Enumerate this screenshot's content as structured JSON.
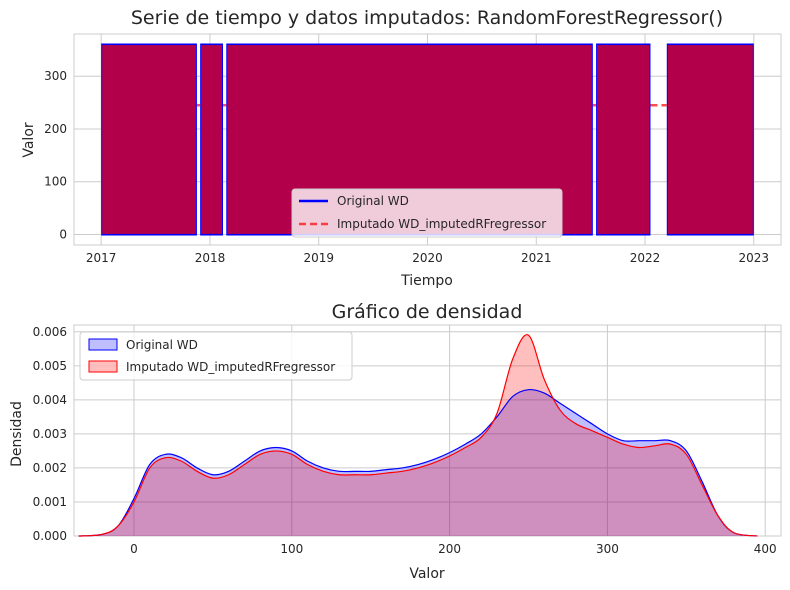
{
  "colors": {
    "original": "#0000ff",
    "imputed": "#ff0000",
    "timeseries_fill": "#b3004b",
    "kde_overlap": "#c78ec0"
  },
  "chart_data": [
    {
      "type": "line",
      "title": "Serie de tiempo y datos imputados: RandomForestRegressor()",
      "xlabel": "Tiempo",
      "ylabel": "Valor",
      "xlim": [
        2016.75,
        2023.25
      ],
      "ylim": [
        -20,
        380
      ],
      "x_ticks": [
        2017,
        2018,
        2019,
        2020,
        2021,
        2022,
        2023
      ],
      "x_tick_labels": [
        "2017",
        "2018",
        "2019",
        "2020",
        "2021",
        "2022",
        "2023"
      ],
      "y_ticks": [
        0,
        100,
        200,
        300
      ],
      "y_tick_labels": [
        "0",
        "100",
        "200",
        "300"
      ],
      "grid": true,
      "legend": "lower-center",
      "series": [
        {
          "name": "Original WD",
          "style": "solid",
          "value_range": [
            0,
            360
          ],
          "segments": [
            [
              2017.0,
              2017.88
            ],
            [
              2017.91,
              2018.12
            ],
            [
              2018.15,
              2021.52
            ],
            [
              2021.55,
              2022.05
            ],
            [
              2022.2,
              2023.0
            ]
          ]
        },
        {
          "name": "Imputado WD_imputedRFregressor",
          "style": "dashed",
          "value_range": [
            0,
            360
          ],
          "imputed_level": 245,
          "imputed_gaps": [
            [
              2017.88,
              2017.91
            ],
            [
              2018.12,
              2018.15
            ],
            [
              2021.52,
              2021.55
            ],
            [
              2022.05,
              2022.2
            ]
          ]
        }
      ]
    },
    {
      "type": "area",
      "title": "Gráfico de densidad",
      "xlabel": "Valor",
      "ylabel": "Densidad",
      "xlim": [
        -38,
        410
      ],
      "ylim": [
        0,
        0.0062
      ],
      "x_ticks": [
        0,
        100,
        200,
        300,
        400
      ],
      "x_tick_labels": [
        "0",
        "100",
        "200",
        "300",
        "400"
      ],
      "y_ticks": [
        0,
        0.001,
        0.002,
        0.003,
        0.004,
        0.005,
        0.006
      ],
      "y_tick_labels": [
        "0.000",
        "0.001",
        "0.002",
        "0.003",
        "0.004",
        "0.005",
        "0.006"
      ],
      "grid": true,
      "legend": "top-left",
      "x": [
        -35,
        -20,
        -10,
        0,
        10,
        20,
        30,
        40,
        50,
        60,
        70,
        80,
        90,
        100,
        110,
        120,
        130,
        140,
        150,
        160,
        170,
        180,
        190,
        200,
        210,
        220,
        230,
        240,
        250,
        260,
        270,
        280,
        290,
        300,
        310,
        320,
        330,
        340,
        350,
        360,
        370,
        380,
        395
      ],
      "series": [
        {
          "name": "Original WD",
          "values": [
            0.0,
            5e-05,
            0.0003,
            0.0011,
            0.0021,
            0.0024,
            0.0023,
            0.002,
            0.0018,
            0.0019,
            0.0022,
            0.0025,
            0.0026,
            0.0025,
            0.0022,
            0.002,
            0.0019,
            0.0019,
            0.0019,
            0.00195,
            0.002,
            0.0021,
            0.00225,
            0.00245,
            0.0027,
            0.003,
            0.0035,
            0.0041,
            0.0043,
            0.0042,
            0.0039,
            0.0036,
            0.0033,
            0.003,
            0.0028,
            0.0028,
            0.0028,
            0.0028,
            0.0025,
            0.0016,
            0.0006,
            0.0001,
            0.0
          ]
        },
        {
          "name": "Imputado WD_imputedRFregressor",
          "values": [
            0.0,
            5e-05,
            0.0003,
            0.001,
            0.002,
            0.0023,
            0.0022,
            0.0019,
            0.0017,
            0.0018,
            0.0021,
            0.0024,
            0.0025,
            0.0024,
            0.0021,
            0.0019,
            0.0018,
            0.0018,
            0.0018,
            0.00185,
            0.0019,
            0.002,
            0.00215,
            0.00235,
            0.0026,
            0.0029,
            0.0036,
            0.0052,
            0.0059,
            0.0046,
            0.0037,
            0.0033,
            0.0031,
            0.0029,
            0.0027,
            0.0026,
            0.00265,
            0.0027,
            0.0024,
            0.0015,
            0.0006,
            0.0001,
            0.0
          ]
        }
      ]
    }
  ]
}
